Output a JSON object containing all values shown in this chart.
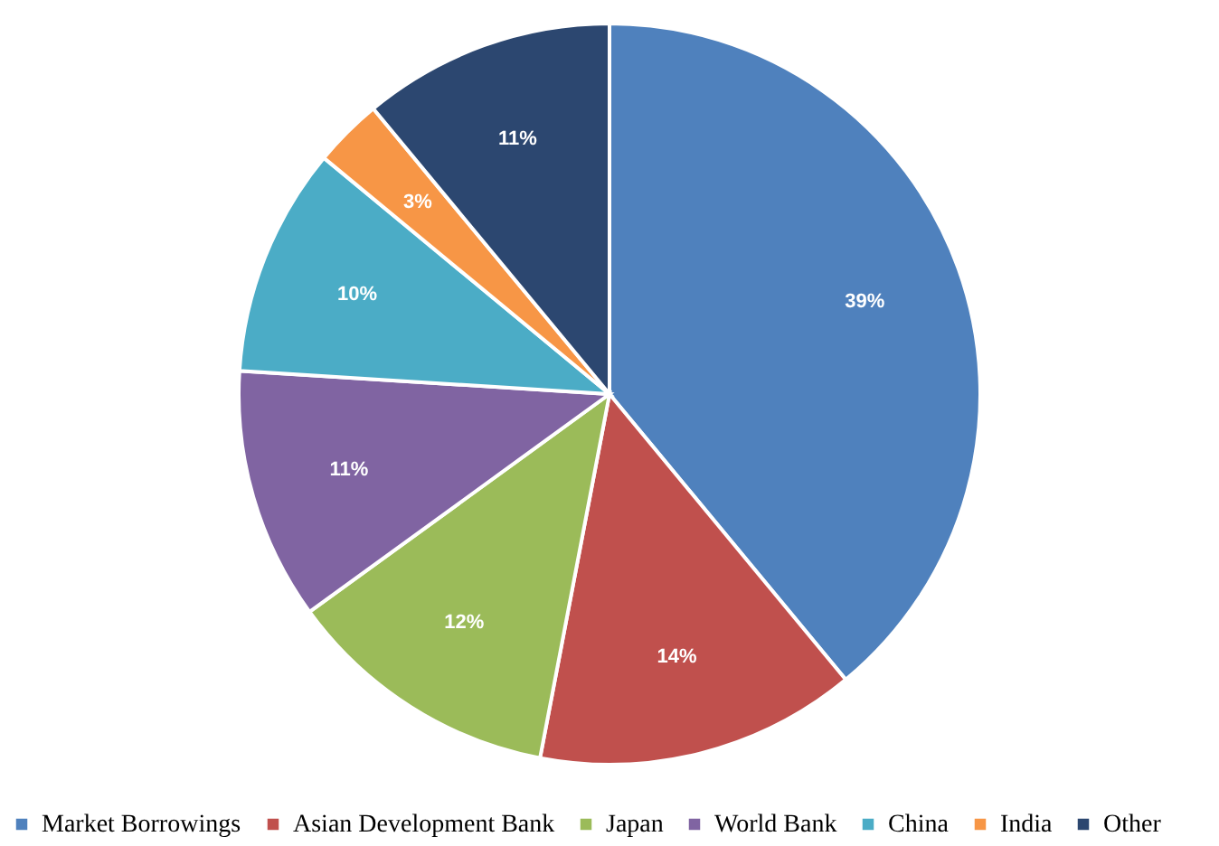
{
  "chart_data": {
    "type": "pie",
    "categories": [
      "Market Borrowings",
      "Asian Development Bank",
      "Japan",
      "World Bank",
      "China",
      "India",
      "Other"
    ],
    "values": [
      39,
      14,
      12,
      11,
      10,
      3,
      11
    ],
    "value_labels": [
      "39%",
      "14%",
      "12%",
      "11%",
      "10%",
      "3%",
      "11%"
    ],
    "colors": [
      "#4f81bd",
      "#c0504d",
      "#9bbb59",
      "#8064a2",
      "#4bacc6",
      "#f79646",
      "#2c4770"
    ],
    "legend": "bottom"
  }
}
